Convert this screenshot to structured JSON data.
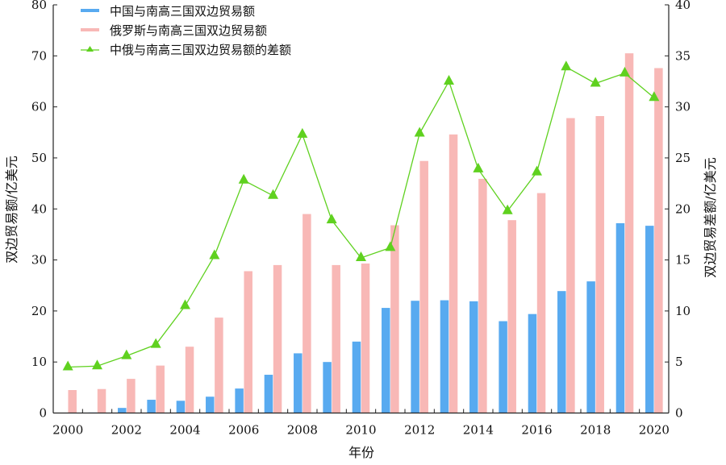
{
  "chart_data": {
    "type": "bar",
    "title": "",
    "xlabel": "年份",
    "ylabel": "双边贸易额/亿美元",
    "y2label": "双边贸易差额/亿美元",
    "ylim": [
      0,
      80
    ],
    "y2lim": [
      0,
      40
    ],
    "yticks": [
      0,
      10,
      20,
      30,
      40,
      50,
      60,
      70,
      80
    ],
    "y2ticks": [
      0,
      5,
      10,
      15,
      20,
      25,
      30,
      35,
      40
    ],
    "categories": [
      "2000",
      "2001",
      "2002",
      "2003",
      "2004",
      "2005",
      "2006",
      "2007",
      "2008",
      "2009",
      "2010",
      "2011",
      "2012",
      "2013",
      "2014",
      "2015",
      "2016",
      "2017",
      "2018",
      "2019",
      "2020"
    ],
    "xtick_labels": [
      "2000",
      "2002",
      "2004",
      "2006",
      "2008",
      "2010",
      "2012",
      "2014",
      "2016",
      "2018",
      "2020"
    ],
    "legend_position": "top-left",
    "series": [
      {
        "name": "中国与南高三国双边贸易额",
        "type": "bar",
        "axis": "left",
        "color": "#58aaf0",
        "values": [
          0.05,
          0.1,
          1.0,
          2.6,
          2.4,
          3.2,
          4.8,
          7.5,
          11.7,
          10.0,
          14.0,
          20.6,
          22.0,
          22.1,
          21.9,
          18.0,
          19.4,
          23.9,
          25.8,
          37.2,
          36.7
        ]
      },
      {
        "name": "俄罗斯与南高三国双边贸易额",
        "type": "bar",
        "axis": "left",
        "color": "#f8b8b6",
        "values": [
          4.5,
          4.7,
          6.7,
          9.3,
          13.0,
          18.7,
          27.8,
          29.0,
          39.0,
          29.0,
          29.3,
          36.8,
          49.4,
          54.6,
          45.9,
          37.8,
          43.1,
          57.8,
          58.2,
          70.5,
          67.6
        ]
      },
      {
        "name": "中俄与南高三国双边贸易额的差额",
        "type": "line",
        "axis": "right",
        "color": "#5fd11f",
        "values": [
          4.5,
          4.6,
          5.6,
          6.7,
          10.5,
          15.4,
          22.8,
          21.3,
          27.3,
          18.9,
          15.2,
          16.2,
          27.4,
          32.5,
          23.9,
          19.8,
          23.6,
          33.9,
          32.3,
          33.3,
          30.9
        ]
      }
    ]
  }
}
